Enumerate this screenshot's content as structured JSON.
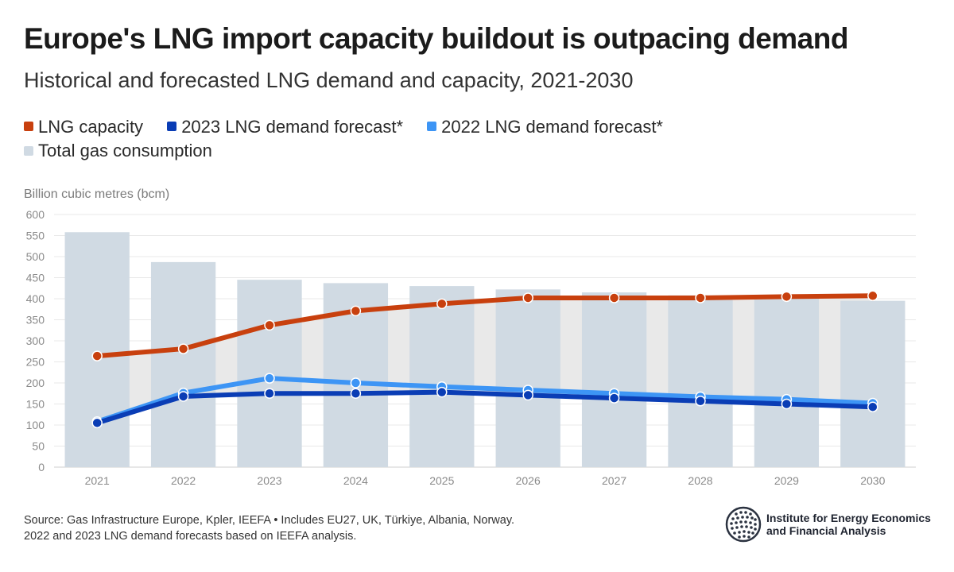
{
  "title": "Europe's LNG import capacity buildout is outpacing demand",
  "subtitle": "Historical and forecasted LNG demand and capacity, 2021-2030",
  "legend": [
    {
      "label": "LNG capacity",
      "color": "#c8400e"
    },
    {
      "label": "2023 LNG demand forecast*",
      "color": "#0a3db5"
    },
    {
      "label": "2022 LNG demand forecast*",
      "color": "#3d95f5"
    },
    {
      "label": "Total gas consumption",
      "color": "#d0dae3"
    }
  ],
  "units_label": "Billion cubic metres (bcm)",
  "chart_data": {
    "type": "bar",
    "categories": [
      "2021",
      "2022",
      "2023",
      "2024",
      "2025",
      "2026",
      "2027",
      "2028",
      "2029",
      "2030"
    ],
    "series": [
      {
        "name": "Total gas consumption",
        "type": "bar",
        "color": "#d0dae3",
        "values": [
          558,
          487,
          445,
          437,
          430,
          422,
          415,
          408,
          402,
          395
        ]
      },
      {
        "name": "LNG capacity",
        "type": "line",
        "color": "#c8400e",
        "values": [
          264,
          281,
          337,
          371,
          388,
          402,
          402,
          402,
          405,
          407
        ]
      },
      {
        "name": "2022 LNG demand forecast*",
        "type": "line",
        "color": "#3d95f5",
        "values": [
          108,
          176,
          211,
          200,
          191,
          183,
          175,
          167,
          161,
          152
        ]
      },
      {
        "name": "2023 LNG demand forecast*",
        "type": "line",
        "color": "#0a3db5",
        "values": [
          105,
          168,
          175,
          175,
          178,
          171,
          164,
          157,
          150,
          143
        ]
      }
    ],
    "ylabel": "Billion cubic metres (bcm)",
    "ylim": [
      0,
      600
    ],
    "yticks": [
      0,
      50,
      100,
      150,
      200,
      250,
      300,
      350,
      400,
      450,
      500,
      550,
      600
    ],
    "grid": true,
    "shaded_band": {
      "between": [
        "LNG capacity",
        "2023 LNG demand forecast*"
      ],
      "color": "#e9e9e9"
    }
  },
  "source_lines": [
    "Source: Gas Infrastructure Europe, Kpler, IEEFA • Includes EU27, UK, Türkiye, Albania, Norway.",
    "2022 and 2023 LNG demand forecasts based on IEEFA analysis."
  ],
  "logo": {
    "line1": "Institute for Energy Economics",
    "line2": "and Financial Analysis",
    "icon": "globe-icon"
  }
}
